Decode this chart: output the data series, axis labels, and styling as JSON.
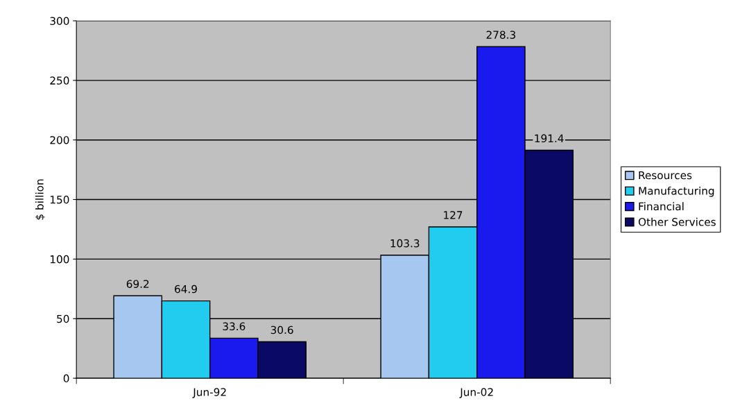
{
  "chart_data": {
    "type": "bar",
    "ylabel": "$ billion",
    "categories": [
      "Jun-92",
      "Jun-02"
    ],
    "series": [
      {
        "name": "Resources",
        "color": "#a6c8f0",
        "values": [
          69.2,
          103.3
        ]
      },
      {
        "name": "Manufacturing",
        "color": "#22ccee",
        "values": [
          64.9,
          127
        ]
      },
      {
        "name": "Financial",
        "color": "#1a1aee",
        "values": [
          33.6,
          278.3
        ]
      },
      {
        "name": "Other Services",
        "color": "#0a0a66",
        "values": [
          30.6,
          191.4
        ]
      }
    ],
    "ylim": [
      0,
      300
    ],
    "yticks": [
      0,
      50,
      100,
      150,
      200,
      250,
      300
    ],
    "grid": "y",
    "legend": "right",
    "data_labels": true
  }
}
